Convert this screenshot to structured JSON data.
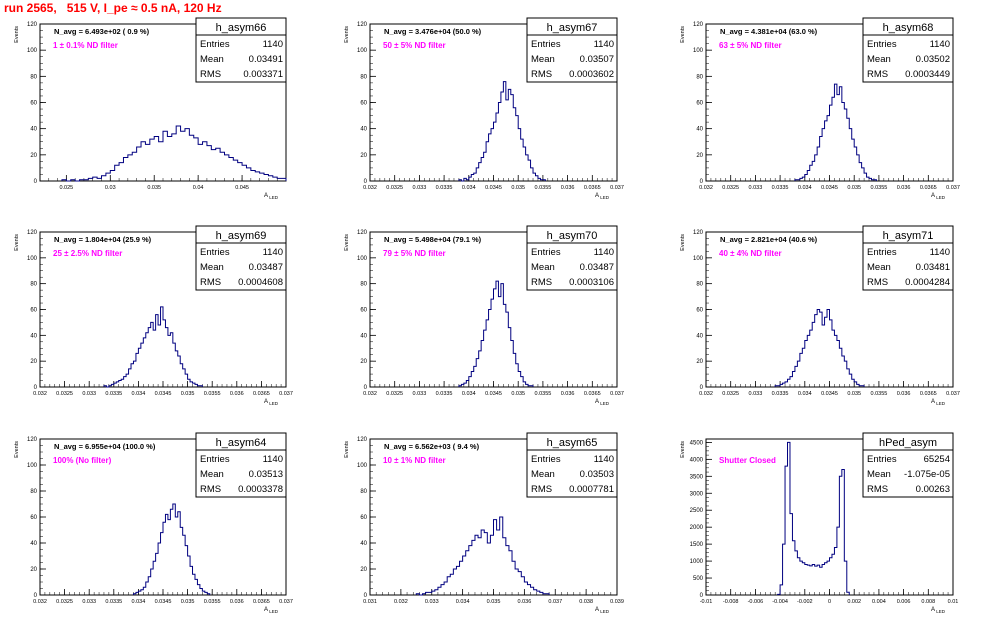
{
  "run_title": "run 2565,   515 V, I_pe ≈ 0.5 nA, 120 Hz",
  "colors": {
    "histogram": "#000080",
    "annotation": "#ff00ff",
    "title": "#ff0000",
    "axis": "#000000"
  },
  "stats_labels": {
    "entries": "Entries",
    "mean": "Mean",
    "rms": "RMS"
  },
  "chart_data": [
    {
      "type": "histogram",
      "name": "h_asym66",
      "navg": "N_avg = 6.493e+02 ( 0.9 %)",
      "filter": "1 ± 0.1% ND filter",
      "ylabel": "Events",
      "xlabel": "A_LED",
      "stats": {
        "entries": "1140",
        "mean": "0.03491",
        "rms": "0.003371"
      },
      "xlim": [
        0.022,
        0.05
      ],
      "ylim": [
        0,
        120
      ],
      "xticks": [
        0.025,
        0.03,
        0.035,
        0.04,
        0.045
      ],
      "xtick_labels": [
        "0.025",
        "0.03",
        "0.035",
        "0.04",
        "0.045"
      ],
      "yticks": [
        0,
        20,
        40,
        60,
        80,
        100,
        120
      ],
      "bins": {
        "start": 0.0245,
        "width": 0.0005,
        "counts": [
          1,
          0,
          1,
          0,
          1,
          1,
          2,
          3,
          2,
          4,
          6,
          8,
          12,
          14,
          18,
          20,
          22,
          26,
          30,
          28,
          32,
          34,
          30,
          38,
          34,
          36,
          42,
          38,
          40,
          35,
          33,
          28,
          30,
          27,
          24,
          25,
          22,
          20,
          18,
          16,
          14,
          12,
          10,
          8,
          7,
          6,
          5,
          4,
          3,
          2,
          2,
          1,
          1
        ]
      }
    },
    {
      "type": "histogram",
      "name": "h_asym67",
      "navg": "N_avg = 3.476e+04 (50.0 %)",
      "filter": "50 ± 5% ND filter",
      "ylabel": "Events",
      "xlabel": "A_LED",
      "stats": {
        "entries": "1140",
        "mean": "0.03507",
        "rms": "0.0003602"
      },
      "xlim": [
        0.032,
        0.037
      ],
      "ylim": [
        0,
        120
      ],
      "xticks": [
        0.032,
        0.0325,
        0.033,
        0.0335,
        0.034,
        0.0345,
        0.035,
        0.0355,
        0.036,
        0.0365,
        0.037
      ],
      "xtick_labels": [
        "0.032",
        "0.0325",
        "0.033",
        "0.0335",
        "0.034",
        "0.0345",
        "0.035",
        "0.0355",
        "0.036",
        "0.0365",
        "0.037"
      ],
      "yticks": [
        0,
        20,
        40,
        60,
        80,
        100,
        120
      ],
      "bins": {
        "start": 0.0338,
        "width": 5e-05,
        "counts": [
          1,
          0,
          2,
          1,
          3,
          5,
          6,
          10,
          14,
          18,
          22,
          30,
          36,
          40,
          45,
          52,
          60,
          68,
          76,
          62,
          70,
          66,
          56,
          50,
          40,
          32,
          26,
          20,
          16,
          10,
          6,
          4,
          2,
          1,
          1
        ]
      }
    },
    {
      "type": "histogram",
      "name": "h_asym68",
      "navg": "N_avg = 4.381e+04 (63.0 %)",
      "filter": "63 ± 5% ND filter",
      "ylabel": "Events",
      "xlabel": "A_LED",
      "stats": {
        "entries": "1140",
        "mean": "0.03502",
        "rms": "0.0003449"
      },
      "xlim": [
        0.032,
        0.037
      ],
      "ylim": [
        0,
        120
      ],
      "xticks": [
        0.032,
        0.0325,
        0.033,
        0.0335,
        0.034,
        0.0345,
        0.035,
        0.0355,
        0.036,
        0.0365,
        0.037
      ],
      "xtick_labels": [
        "0.032",
        "0.0325",
        "0.033",
        "0.0335",
        "0.034",
        "0.0345",
        "0.035",
        "0.0355",
        "0.036",
        "0.0365",
        "0.037"
      ],
      "yticks": [
        0,
        20,
        40,
        60,
        80,
        100,
        120
      ],
      "bins": {
        "start": 0.0338,
        "width": 5e-05,
        "counts": [
          1,
          1,
          2,
          3,
          5,
          8,
          12,
          15,
          20,
          26,
          34,
          40,
          46,
          50,
          58,
          64,
          74,
          66,
          72,
          60,
          55,
          48,
          40,
          32,
          26,
          20,
          14,
          10,
          6,
          3,
          2,
          1,
          1
        ]
      }
    },
    {
      "type": "histogram",
      "name": "h_asym69",
      "navg": "N_avg = 1.804e+04 (25.9 %)",
      "filter": "25 ± 2.5% ND filter",
      "ylabel": "Events",
      "xlabel": "A_LED",
      "stats": {
        "entries": "1140",
        "mean": "0.03487",
        "rms": "0.0004608"
      },
      "xlim": [
        0.032,
        0.037
      ],
      "ylim": [
        0,
        120
      ],
      "xticks": [
        0.032,
        0.0325,
        0.033,
        0.0335,
        0.034,
        0.0345,
        0.035,
        0.0355,
        0.036,
        0.0365,
        0.037
      ],
      "xtick_labels": [
        "0.032",
        "0.0325",
        "0.033",
        "0.0335",
        "0.034",
        "0.0345",
        "0.035",
        "0.0355",
        "0.036",
        "0.0365",
        "0.037"
      ],
      "yticks": [
        0,
        20,
        40,
        60,
        80,
        100,
        120
      ],
      "bins": {
        "start": 0.0333,
        "width": 5e-05,
        "counts": [
          1,
          0,
          1,
          2,
          3,
          4,
          5,
          6,
          8,
          10,
          14,
          18,
          20,
          26,
          30,
          34,
          38,
          42,
          46,
          50,
          44,
          56,
          48,
          62,
          52,
          46,
          40,
          42,
          34,
          28,
          24,
          18,
          14,
          10,
          6,
          4,
          3,
          2,
          1,
          1
        ]
      }
    },
    {
      "type": "histogram",
      "name": "h_asym70",
      "navg": "N_avg = 5.498e+04 (79.1 %)",
      "filter": "79 ± 5% ND filter",
      "ylabel": "Events",
      "xlabel": "A_LED",
      "stats": {
        "entries": "1140",
        "mean": "0.03487",
        "rms": "0.0003106"
      },
      "xlim": [
        0.032,
        0.037
      ],
      "ylim": [
        0,
        120
      ],
      "xticks": [
        0.032,
        0.0325,
        0.033,
        0.0335,
        0.034,
        0.0345,
        0.035,
        0.0355,
        0.036,
        0.0365,
        0.037
      ],
      "xtick_labels": [
        "0.032",
        "0.0325",
        "0.033",
        "0.0335",
        "0.034",
        "0.0345",
        "0.035",
        "0.0355",
        "0.036",
        "0.0365",
        "0.037"
      ],
      "yticks": [
        0,
        20,
        40,
        60,
        80,
        100,
        120
      ],
      "bins": {
        "start": 0.0338,
        "width": 5e-05,
        "counts": [
          1,
          2,
          3,
          5,
          8,
          12,
          16,
          22,
          28,
          36,
          44,
          52,
          60,
          68,
          76,
          82,
          70,
          80,
          64,
          58,
          46,
          36,
          26,
          18,
          12,
          8,
          4,
          2,
          1,
          1
        ]
      }
    },
    {
      "type": "histogram",
      "name": "h_asym71",
      "navg": "N_avg = 2.821e+04 (40.6 %)",
      "filter": "40 ± 4% ND filter",
      "ylabel": "Events",
      "xlabel": "A_LED",
      "stats": {
        "entries": "1140",
        "mean": "0.03481",
        "rms": "0.0004284"
      },
      "xlim": [
        0.032,
        0.037
      ],
      "ylim": [
        0,
        120
      ],
      "xticks": [
        0.032,
        0.0325,
        0.033,
        0.0335,
        0.034,
        0.0345,
        0.035,
        0.0355,
        0.036,
        0.0365,
        0.037
      ],
      "xtick_labels": [
        "0.032",
        "0.0325",
        "0.033",
        "0.0335",
        "0.034",
        "0.0345",
        "0.035",
        "0.0355",
        "0.036",
        "0.0365",
        "0.037"
      ],
      "yticks": [
        0,
        20,
        40,
        60,
        80,
        100,
        120
      ],
      "bins": {
        "start": 0.0334,
        "width": 5e-05,
        "counts": [
          1,
          1,
          2,
          3,
          4,
          6,
          8,
          12,
          16,
          20,
          26,
          30,
          36,
          40,
          44,
          50,
          56,
          60,
          58,
          48,
          54,
          60,
          52,
          44,
          40,
          36,
          30,
          24,
          20,
          14,
          10,
          6,
          4,
          2,
          1,
          1
        ]
      }
    },
    {
      "type": "histogram",
      "name": "h_asym64",
      "navg": "N_avg = 6.955e+04 (100.0 %)",
      "filter": "100% (No filter)",
      "ylabel": "Events",
      "xlabel": "A_LED",
      "stats": {
        "entries": "1140",
        "mean": "0.03513",
        "rms": "0.0003378"
      },
      "xlim": [
        0.032,
        0.037
      ],
      "ylim": [
        0,
        120
      ],
      "xticks": [
        0.032,
        0.0325,
        0.033,
        0.0335,
        0.034,
        0.0345,
        0.035,
        0.0355,
        0.036,
        0.0365,
        0.037
      ],
      "xtick_labels": [
        "0.032",
        "0.0325",
        "0.033",
        "0.0335",
        "0.034",
        "0.0345",
        "0.035",
        "0.0355",
        "0.036",
        "0.0365",
        "0.037"
      ],
      "yticks": [
        0,
        20,
        40,
        60,
        80,
        100,
        120
      ],
      "bins": {
        "start": 0.0339,
        "width": 5e-05,
        "counts": [
          1,
          2,
          3,
          4,
          6,
          10,
          14,
          20,
          26,
          32,
          40,
          48,
          56,
          62,
          58,
          66,
          70,
          60,
          64,
          52,
          46,
          38,
          30,
          22,
          16,
          12,
          8,
          5,
          3,
          2,
          1
        ]
      }
    },
    {
      "type": "histogram",
      "name": "h_asym65",
      "navg": "N_avg = 6.562e+03 ( 9.4 %)",
      "filter": "10 ± 1% ND filter",
      "ylabel": "Events",
      "xlabel": "A_LED",
      "stats": {
        "entries": "1140",
        "mean": "0.03503",
        "rms": "0.0007781"
      },
      "xlim": [
        0.031,
        0.039
      ],
      "ylim": [
        0,
        120
      ],
      "xticks": [
        0.031,
        0.032,
        0.033,
        0.034,
        0.035,
        0.036,
        0.037,
        0.038,
        0.039
      ],
      "xtick_labels": [
        "0.031",
        "0.032",
        "0.033",
        "0.034",
        "0.035",
        "0.036",
        "0.037",
        "0.038",
        "0.039"
      ],
      "yticks": [
        0,
        20,
        40,
        60,
        80,
        100,
        120
      ],
      "bins": {
        "start": 0.0325,
        "width": 0.0001,
        "counts": [
          1,
          0,
          1,
          2,
          2,
          3,
          4,
          6,
          8,
          10,
          14,
          16,
          20,
          22,
          26,
          30,
          34,
          38,
          42,
          46,
          44,
          50,
          48,
          40,
          46,
          58,
          50,
          60,
          44,
          38,
          34,
          26,
          20,
          18,
          14,
          10,
          8,
          6,
          4,
          3,
          2,
          1,
          1
        ]
      }
    },
    {
      "type": "histogram",
      "name": "hPed_asym",
      "navg": "",
      "filter": "Shutter Closed",
      "ylabel": "Events",
      "xlabel": "A_LED",
      "stats": {
        "entries": "65254",
        "mean": "-1.075e-05",
        "rms": "0.00263"
      },
      "xlim": [
        -0.01,
        0.01
      ],
      "ylim": [
        0,
        4600
      ],
      "xticks": [
        -0.01,
        -0.008,
        -0.006,
        -0.004,
        -0.002,
        0,
        0.002,
        0.004,
        0.006,
        0.008,
        0.01
      ],
      "xtick_labels": [
        "-0.01",
        "-0.008",
        "-0.006",
        "-0.004",
        "-0.002",
        "0",
        "0.002",
        "0.004",
        "0.006",
        "0.008",
        "0.01"
      ],
      "yticks": [
        0,
        500,
        1000,
        1500,
        2000,
        2500,
        3000,
        3500,
        4000,
        4500
      ],
      "bins": {
        "start": -0.0042,
        "width": 0.0002,
        "counts": [
          20,
          300,
          1500,
          3800,
          4500,
          2400,
          1600,
          1300,
          1100,
          1000,
          950,
          900,
          880,
          860,
          900,
          850,
          880,
          820,
          900,
          950,
          1000,
          1100,
          1200,
          1400,
          2000,
          3500,
          3700,
          1000,
          80
        ]
      }
    }
  ]
}
